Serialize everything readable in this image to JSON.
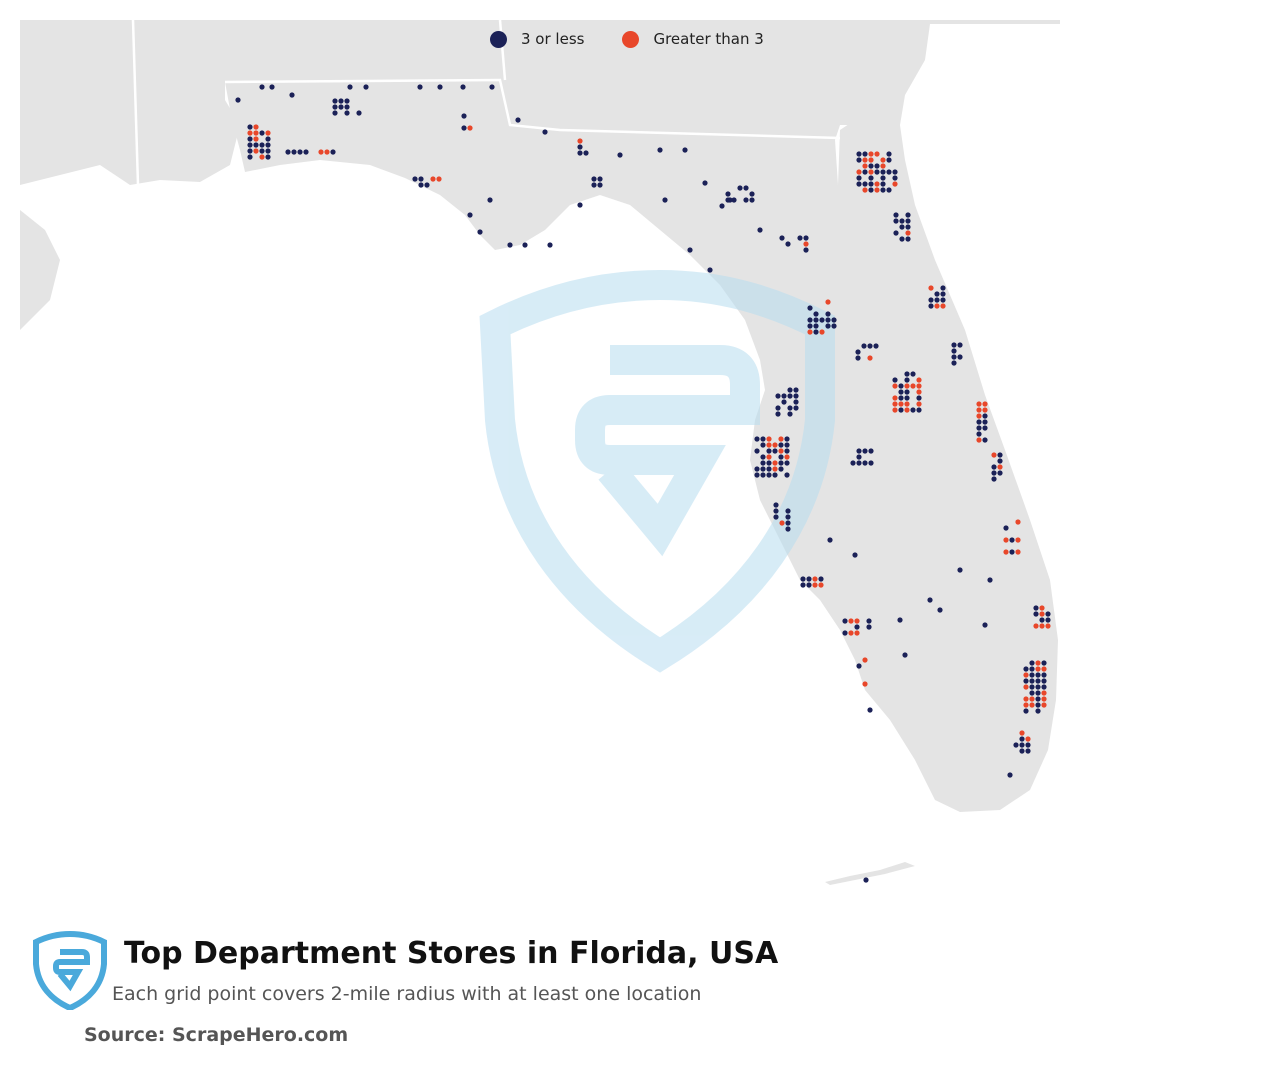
{
  "title": "Top Department Stores in Florida, USA",
  "subtitle": "Each grid point covers 2-mile radius with at least one location",
  "source": "Source: ScrapeHero.com",
  "legend": [
    {
      "label": "3 or less",
      "color": "#1b2157"
    },
    {
      "label": "Greater than 3",
      "color": "#e8472a"
    }
  ],
  "colors": {
    "land": "#e4e4e4",
    "water": "#ffffff",
    "border": "#ffffff",
    "brand": "#4aa9db"
  },
  "icons": {
    "logo": "scrapehero-shield-logo",
    "watermark": "scrapehero-shield-watermark"
  }
}
